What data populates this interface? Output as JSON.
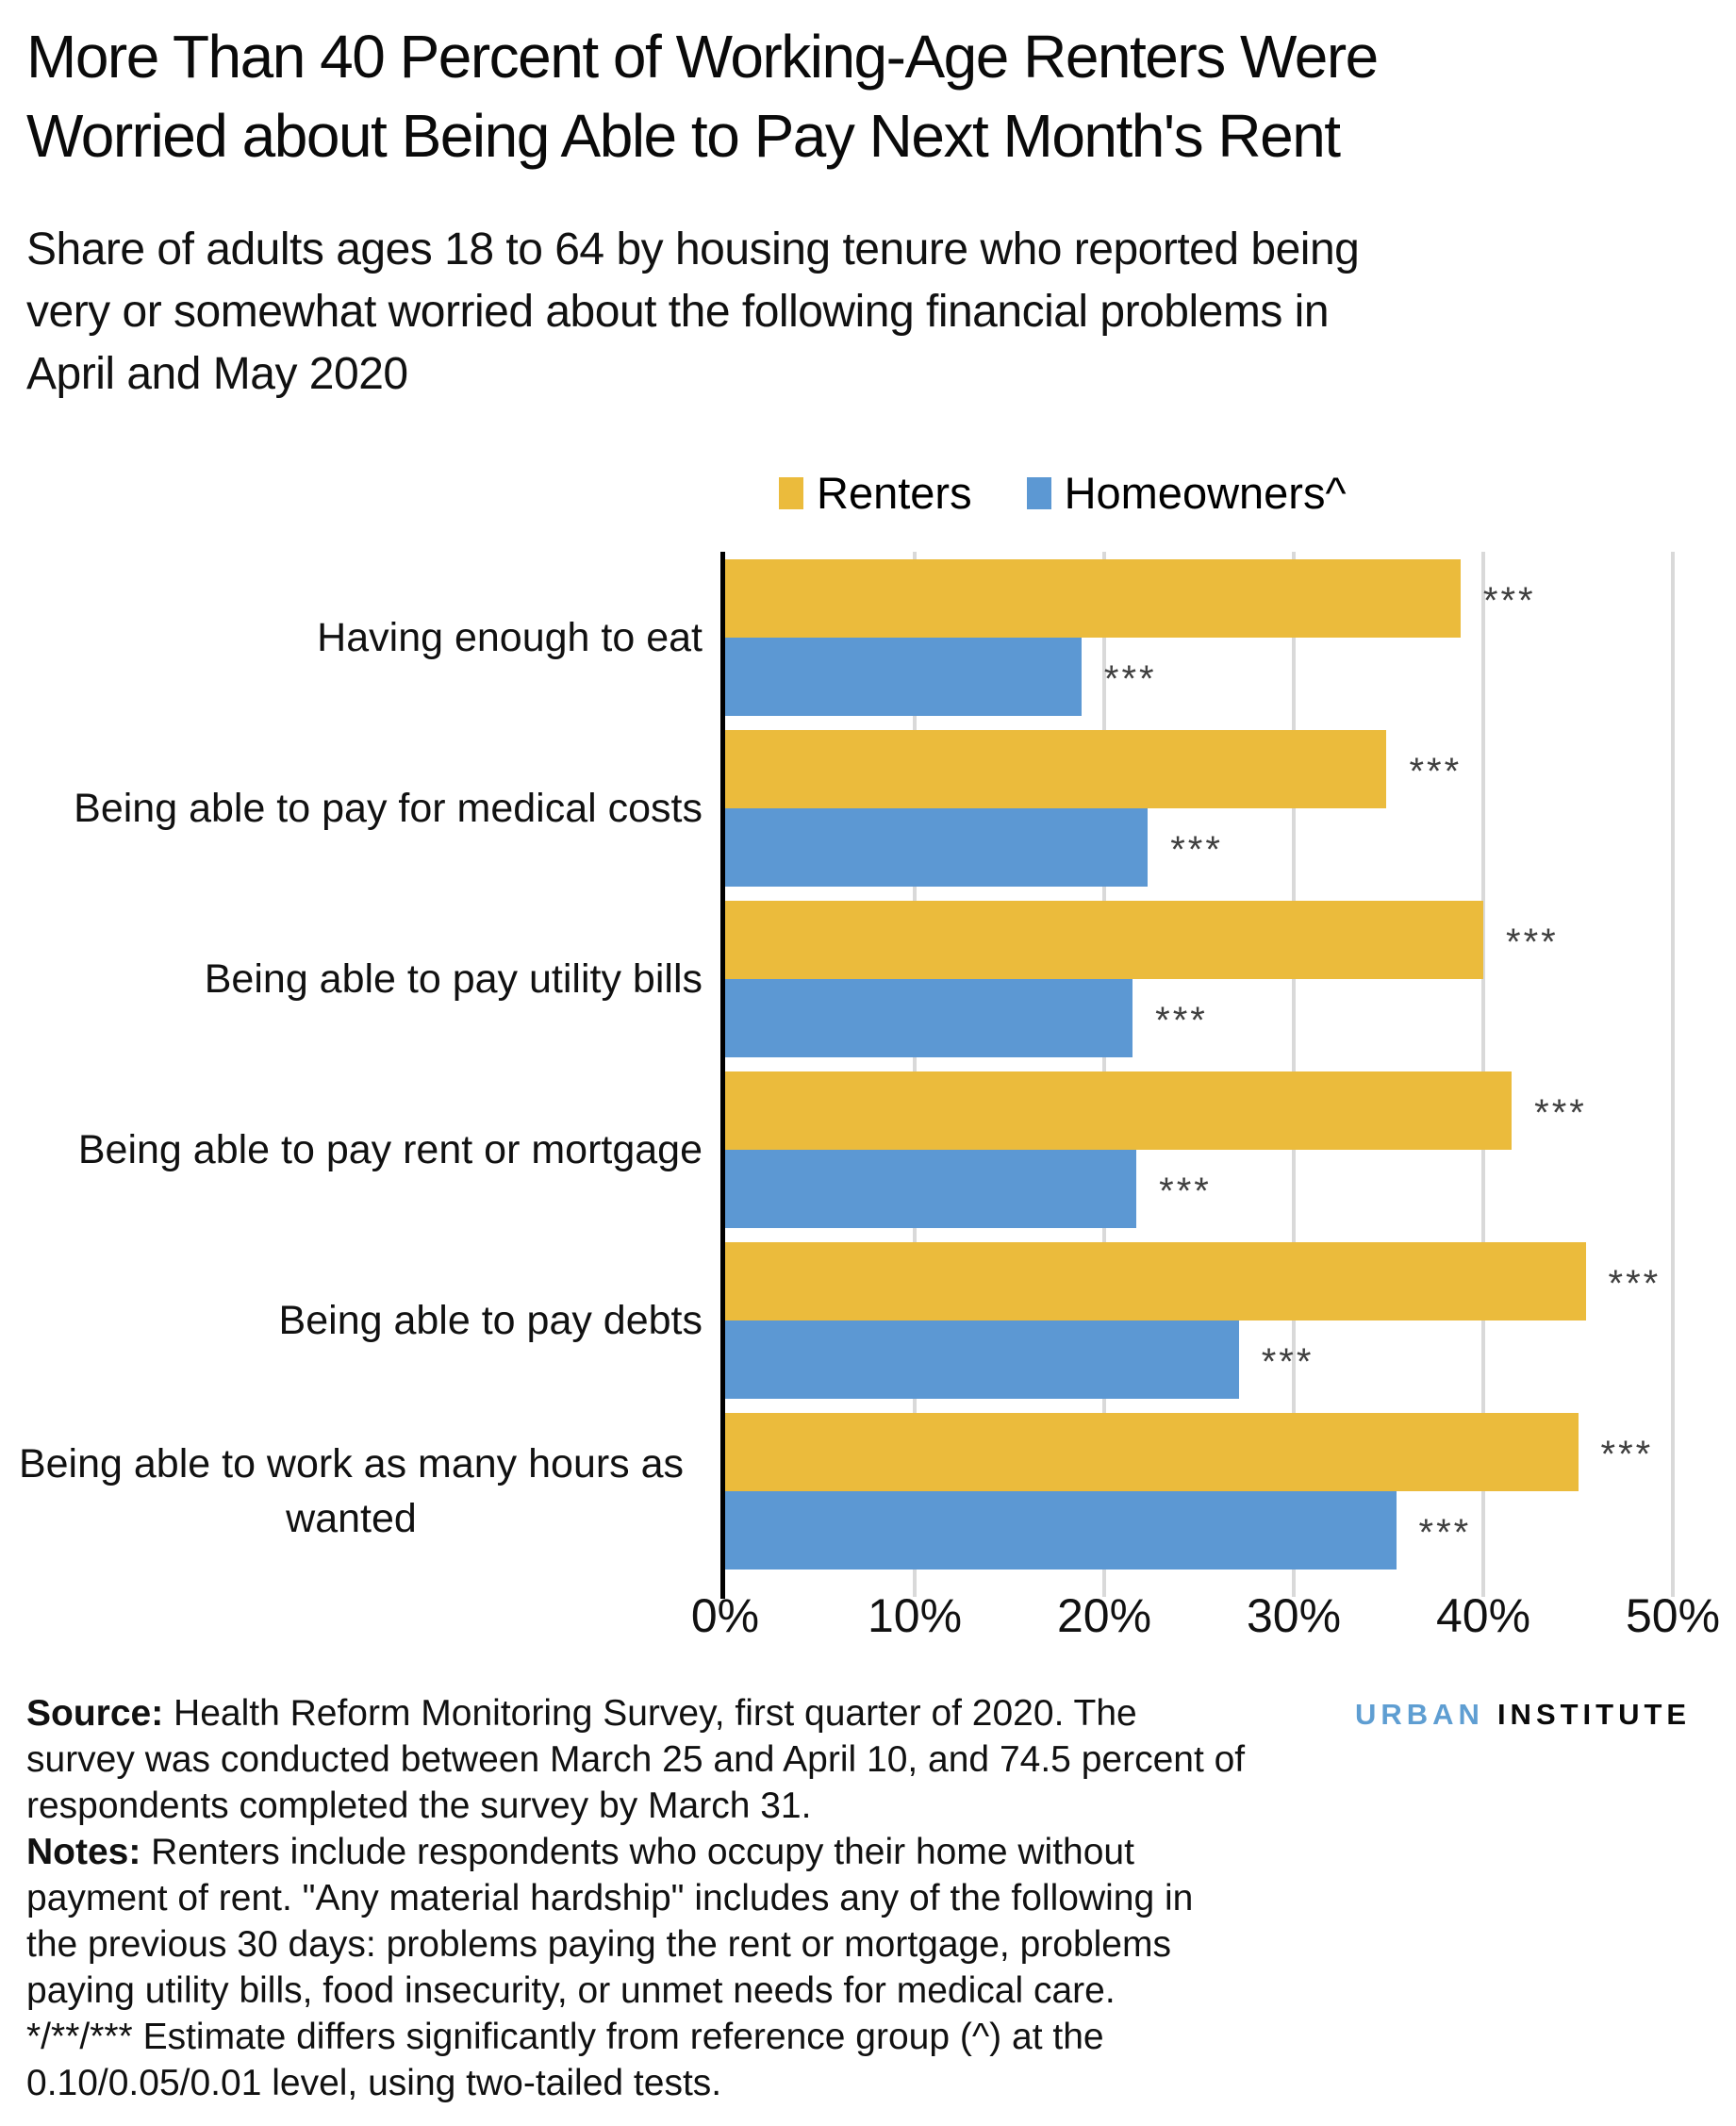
{
  "header": {
    "title_lines": [
      "More Than 40 Percent of Working-Age Renters Were",
      "Worried about Being Able to Pay Next Month's Rent"
    ],
    "subtitle_lines": [
      "Share of adults ages 18 to 64 by housing tenure who reported being",
      "very or somewhat worried about the following financial problems in",
      "April and May 2020"
    ]
  },
  "legend": {
    "items": [
      {
        "label": "Renters",
        "color": "#EBBB3C"
      },
      {
        "label": "Homeowners^",
        "color": "#5C98D3"
      }
    ]
  },
  "chart_data": {
    "type": "bar",
    "orientation": "horizontal",
    "title": "",
    "xlabel": "",
    "ylabel": "",
    "xlim": [
      0,
      50
    ],
    "x_ticks": [
      "0%",
      "10%",
      "20%",
      "30%",
      "40%",
      "50%"
    ],
    "grid": "vertical",
    "legend_position": "top",
    "categories": [
      "Having enough to eat",
      "Being able to pay for medical costs",
      "Being able to pay utility bills",
      "Being able to pay rent or mortgage",
      "Being able to pay debts",
      "Being able to work as many hours as wanted"
    ],
    "series": [
      {
        "name": "Renters",
        "color": "#EBBB3C",
        "values": [
          38.8,
          34.9,
          40.0,
          41.5,
          45.4,
          45.0
        ],
        "sig": [
          "***",
          "***",
          "***",
          "***",
          "***",
          "***"
        ]
      },
      {
        "name": "Homeowners^",
        "color": "#5C98D3",
        "values": [
          18.8,
          22.3,
          21.5,
          21.7,
          27.1,
          35.4
        ],
        "sig": [
          "***",
          "***",
          "***",
          "***",
          "***",
          "***"
        ]
      }
    ]
  },
  "notes": {
    "lines": [
      {
        "bold": "Source:",
        "text": " Health Reform Monitoring Survey, first quarter of 2020. The"
      },
      {
        "bold": "",
        "text": "survey was conducted between March 25 and April 10, and 74.5 percent of"
      },
      {
        "bold": "",
        "text": "respondents completed the survey by March 31."
      },
      {
        "bold": "Notes:",
        "text": " Renters include respondents who occupy their home without"
      },
      {
        "bold": "",
        "text": "payment of rent. \"Any material hardship\" includes any of the following in"
      },
      {
        "bold": "",
        "text": "the previous 30 days: problems paying the rent or mortgage, problems"
      },
      {
        "bold": "",
        "text": "paying utility bills, food insecurity, or unmet needs for medical care."
      },
      {
        "bold": "",
        "text": "*/**/*** Estimate differs significantly from reference group (^) at the"
      },
      {
        "bold": "",
        "text": "0.10/0.05/0.01 level, using two-tailed tests."
      }
    ]
  },
  "logo": {
    "urban": "URBAN",
    "institute": "INSTITUTE",
    "urban_color": "#5F9ED2"
  }
}
